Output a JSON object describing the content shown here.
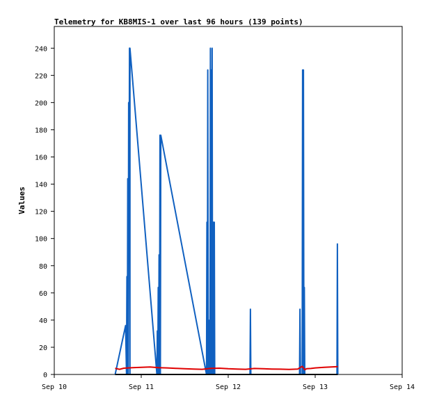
{
  "chart_data": {
    "type": "line",
    "title": "Telemetry for KB8MIS-1 over last 96 hours (139 points)",
    "xlabel": "",
    "ylabel": "Values",
    "x_ticks": [
      "Sep 10",
      "Sep 11",
      "Sep 12",
      "Sep 13",
      "Sep 14"
    ],
    "y_ticks": [
      0,
      20,
      40,
      60,
      80,
      100,
      120,
      140,
      160,
      180,
      200,
      220,
      240
    ],
    "xlim": [
      0,
      4
    ],
    "ylim": [
      0,
      256
    ],
    "grid": false,
    "legend": "none",
    "series": [
      {
        "color": "#1060c0",
        "x": [
          0.7,
          0.82,
          0.83,
          0.835,
          0.84,
          0.845,
          0.85,
          0.855,
          0.86,
          0.865,
          0.87,
          0.87,
          1.18,
          1.185,
          1.19,
          1.195,
          1.2,
          1.205,
          1.21,
          1.215,
          1.22,
          1.225,
          1.225,
          1.75,
          1.755,
          1.76,
          1.765,
          1.77,
          1.775,
          1.78,
          1.785,
          1.79,
          1.795,
          1.8,
          1.805,
          1.81,
          1.815,
          1.82,
          1.83,
          1.835,
          1.84,
          1.845,
          1.85,
          2.25,
          2.255,
          2.26,
          2.82,
          2.825,
          2.83,
          2.85,
          2.855,
          2.86,
          2.865,
          2.87,
          2.875,
          2.88,
          2.885,
          3.25,
          3.255,
          3.26
        ],
        "y": [
          0,
          36,
          0,
          72,
          0,
          144,
          0,
          200,
          120,
          240,
          0,
          240,
          0,
          32,
          0,
          64,
          0,
          88,
          0,
          176,
          0,
          176,
          176,
          0,
          112,
          0,
          224,
          0,
          40,
          0,
          24,
          0,
          240,
          0,
          224,
          0,
          240,
          0,
          112,
          0,
          112,
          0,
          0,
          0,
          48,
          0,
          0,
          48,
          0,
          0,
          224,
          0,
          224,
          0,
          64,
          0,
          0,
          0,
          96,
          0
        ]
      },
      {
        "color": "#e00000",
        "x": [
          0.7,
          0.75,
          0.8,
          0.9,
          1.0,
          1.1,
          1.2,
          1.3,
          1.4,
          1.5,
          1.6,
          1.7,
          1.8,
          1.9,
          2.0,
          2.1,
          2.2,
          2.3,
          2.4,
          2.5,
          2.6,
          2.7,
          2.8,
          2.85,
          2.88,
          2.9,
          2.95,
          3.0,
          3.1,
          3.2,
          3.26
        ],
        "y": [
          4.5,
          3.8,
          4.6,
          5.0,
          5.2,
          5.5,
          5.0,
          4.8,
          4.5,
          4.2,
          4.0,
          3.8,
          4.5,
          4.6,
          4.2,
          4.0,
          3.8,
          4.4,
          4.2,
          4.0,
          3.9,
          3.7,
          4.0,
          6.0,
          3.5,
          4.2,
          4.4,
          4.8,
          5.2,
          5.6,
          5.8
        ]
      },
      {
        "color": "#000000",
        "x": [
          0.7,
          3.26
        ],
        "y": [
          0,
          0
        ]
      }
    ]
  }
}
